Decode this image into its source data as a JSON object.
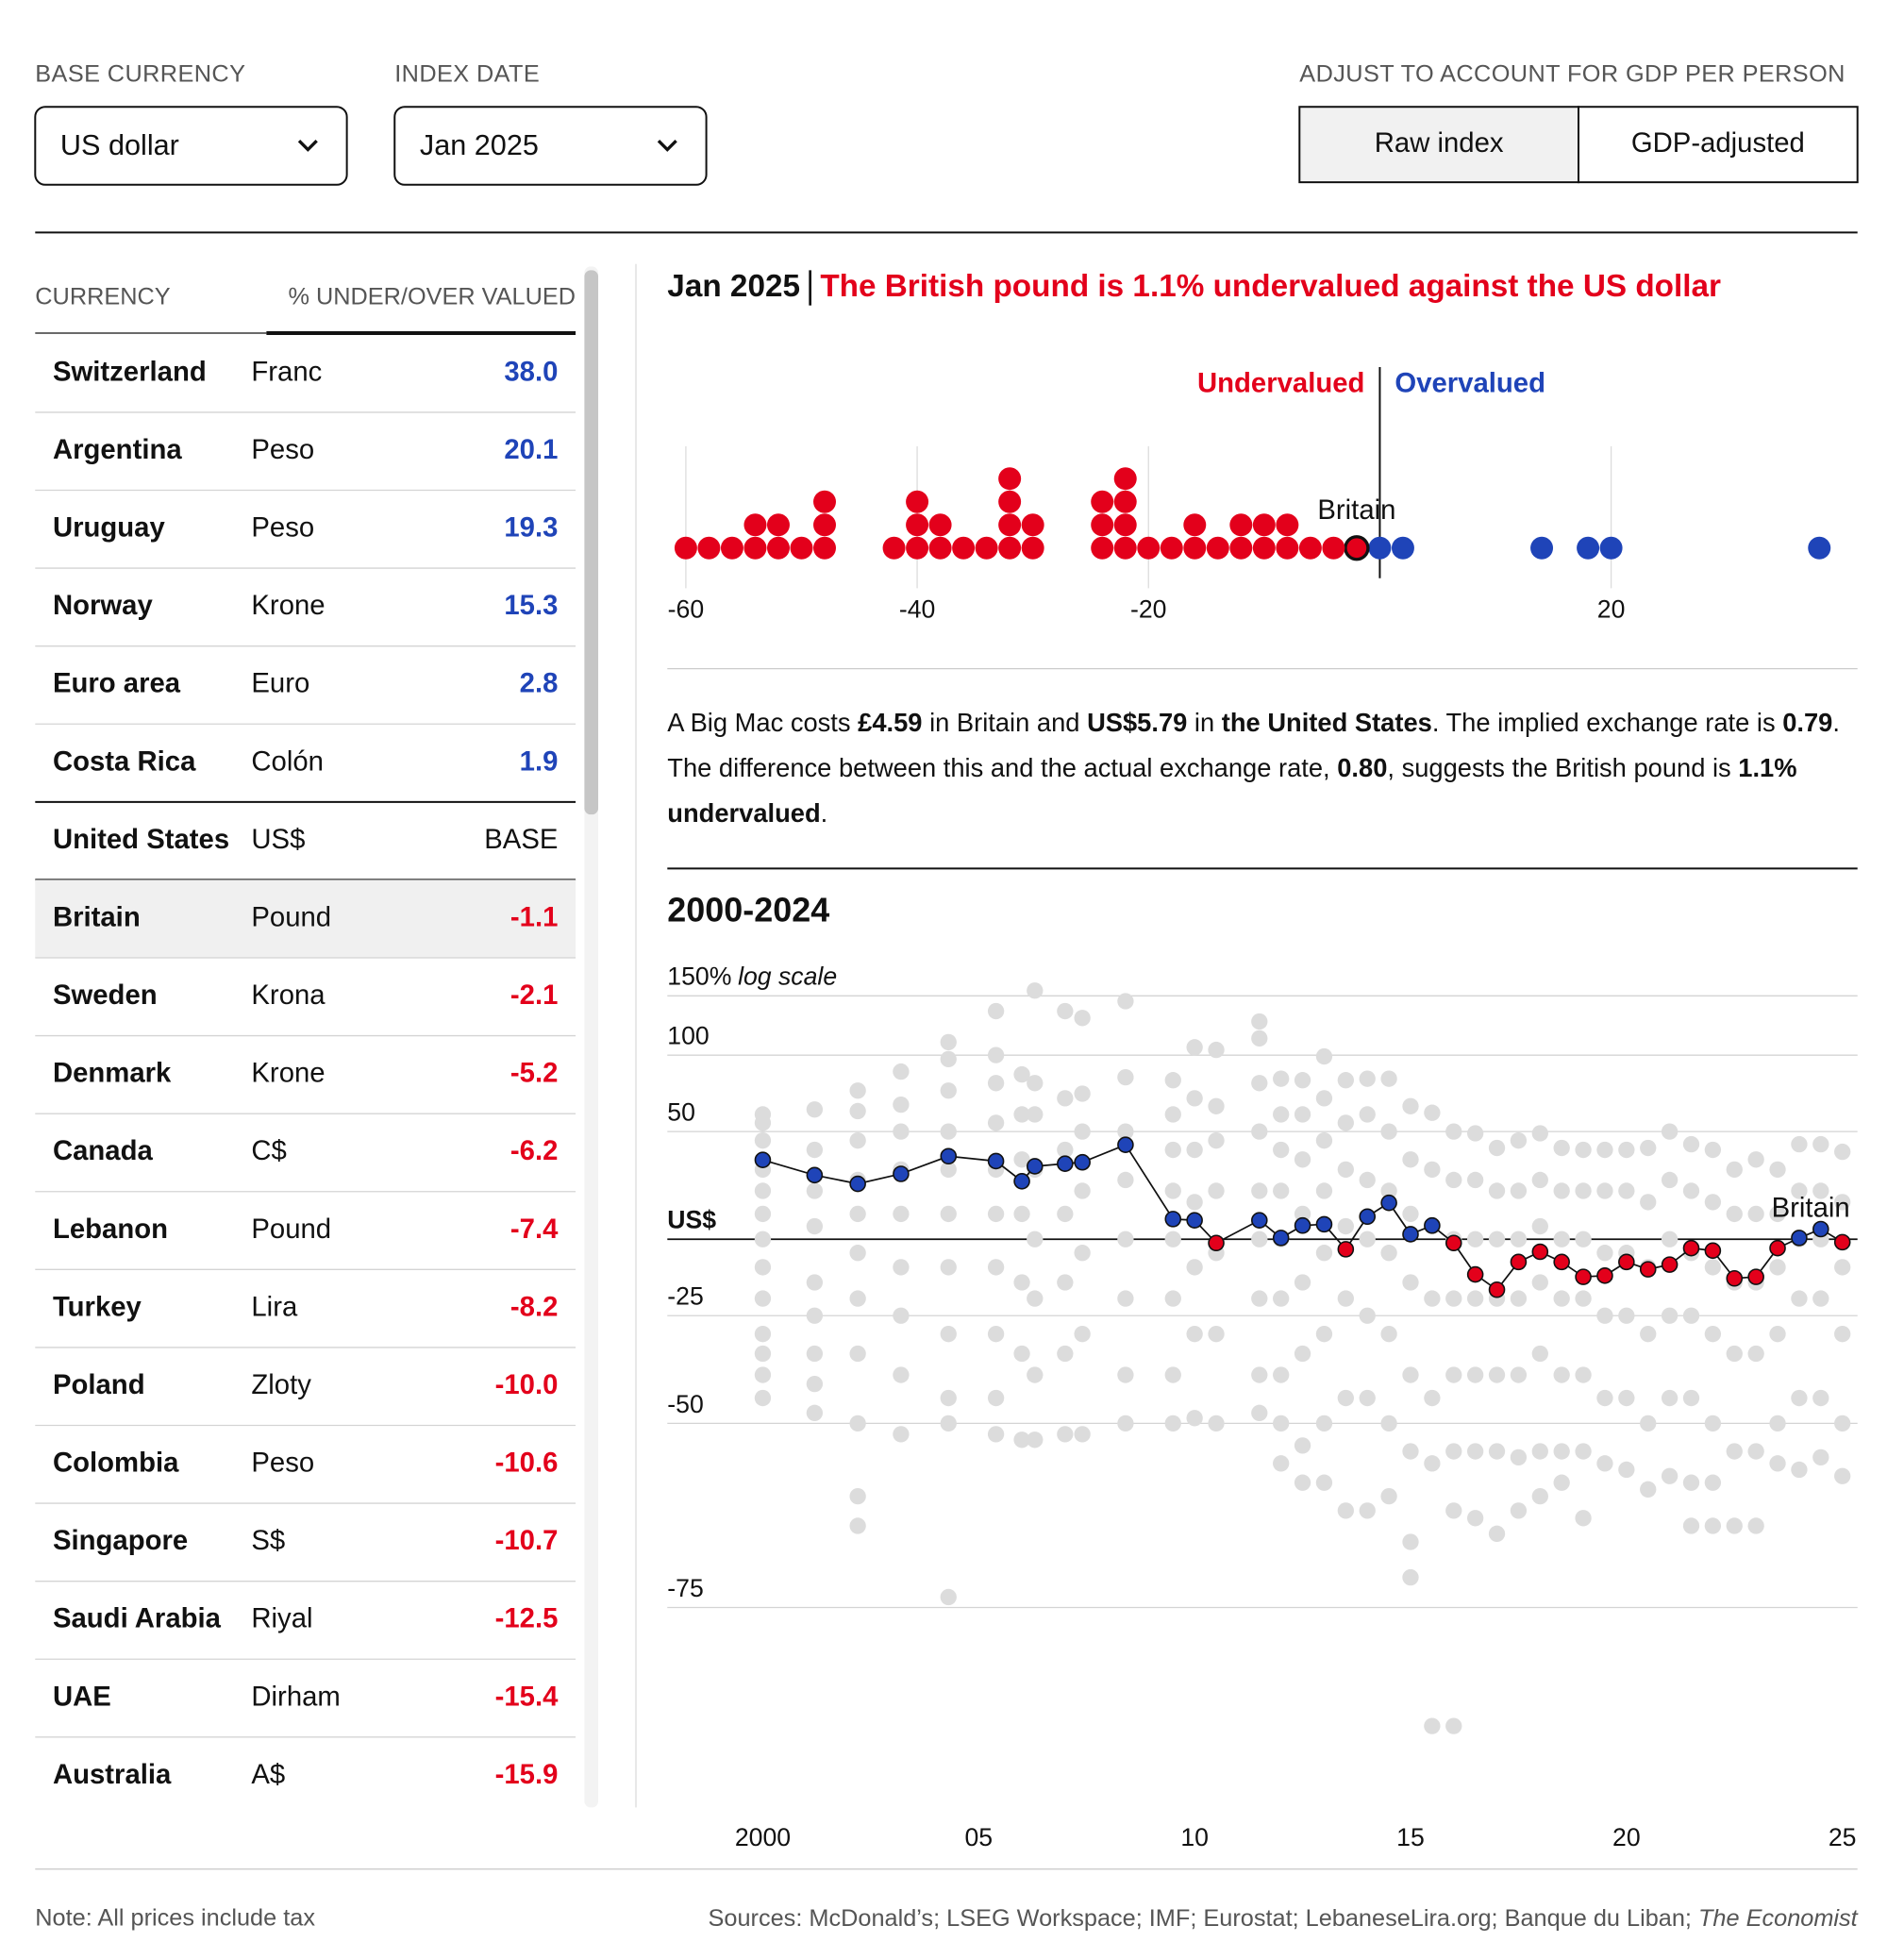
{
  "controls": {
    "base_currency": {
      "label": "BASE CURRENCY",
      "value": "US dollar"
    },
    "index_date": {
      "label": "INDEX DATE",
      "value": "Jan 2025"
    },
    "adjustment": {
      "label": "ADJUST TO ACCOUNT FOR GDP PER PERSON",
      "options": [
        "Raw index",
        "GDP-adjusted"
      ],
      "selected": 0
    }
  },
  "table": {
    "header": [
      "CURRENCY",
      "% UNDER/OVER VALUED"
    ],
    "over_color": "#1f44b8",
    "under_color": "#e3001b",
    "base_row": 6,
    "selected_row": 7,
    "rows": [
      [
        "Switzerland",
        "Franc",
        "38.0"
      ],
      [
        "Argentina",
        "Peso",
        "20.1"
      ],
      [
        "Uruguay",
        "Peso",
        "19.3"
      ],
      [
        "Norway",
        "Krone",
        "15.3"
      ],
      [
        "Euro area",
        "Euro",
        "2.8"
      ],
      [
        "Costa Rica",
        "Colón",
        "1.9"
      ],
      [
        "United States",
        "US$",
        "BASE"
      ],
      [
        "Britain",
        "Pound",
        "-1.1"
      ],
      [
        "Sweden",
        "Krona",
        "-2.1"
      ],
      [
        "Denmark",
        "Krone",
        "-5.2"
      ],
      [
        "Canada",
        "C$",
        "-6.2"
      ],
      [
        "Lebanon",
        "Pound",
        "-7.4"
      ],
      [
        "Turkey",
        "Lira",
        "-8.2"
      ],
      [
        "Poland",
        "Zloty",
        "-10.0"
      ],
      [
        "Colombia",
        "Peso",
        "-10.6"
      ],
      [
        "Singapore",
        "S$",
        "-10.7"
      ],
      [
        "Saudi Arabia",
        "Riyal",
        "-12.5"
      ],
      [
        "UAE",
        "Dirham",
        "-15.4"
      ],
      [
        "Australia",
        "A$",
        "-15.9"
      ]
    ]
  },
  "headline": "The British pound is 1.1% undervalued against the US dollar",
  "paragraph": [
    {
      "text": "A Big Mac costs ",
      "bold": false
    },
    {
      "text": "£4.59",
      "bold": true
    },
    {
      "text": " in Britain and ",
      "bold": false
    },
    {
      "text": "US$5.79",
      "bold": true
    },
    {
      "text": " in ",
      "bold": false
    },
    {
      "text": "the United States",
      "bold": true
    },
    {
      "text": ". The implied exchange rate is ",
      "bold": false
    },
    {
      "text": "0.79",
      "bold": true
    },
    {
      "text": ". The difference between this and the actual exchange rate, ",
      "bold": false
    },
    {
      "text": "0.80",
      "bold": true
    },
    {
      "text": ", suggests the British pound is ",
      "bold": false
    },
    {
      "text": "1.1% undervalued",
      "bold": true
    },
    {
      "text": ".",
      "bold": false
    }
  ],
  "chart_data": [
    {
      "type": "beeswarm",
      "below_label": "Undervalued",
      "above_label": "Overvalued",
      "below_color": "#e3001b",
      "above_color": "#1f44b8",
      "reference": 0,
      "bin_width": 2,
      "highlight_index": 6,
      "highlight_label": "Britain",
      "xlim": [
        -61.6,
        41.3
      ],
      "xticks": [
        -60,
        -40,
        -20,
        20
      ],
      "grid": true,
      "values": [
        38.0,
        20.1,
        19.3,
        15.3,
        2.8,
        1.9,
        -1.1,
        -2.1,
        -5.2,
        -6.2,
        -7.4,
        -8.2,
        -10.0,
        -10.6,
        -10.7,
        -12.5,
        -15.4,
        -15.9,
        -17.5,
        -19.5,
        -21.5,
        -21.5,
        -21.5,
        -21.5,
        -23.5,
        -23.5,
        -23.5,
        -29.5,
        -29.5,
        -31.5,
        -31.5,
        -31.5,
        -31.5,
        -33.5,
        -35.5,
        -37.5,
        -37.5,
        -39.5,
        -39.5,
        -39.5,
        -41.5,
        -47.5,
        -47.5,
        -47.5,
        -49.5,
        -51.5,
        -51.5,
        -53.5,
        -53.5,
        -55.5,
        -57.5,
        -59.5
      ]
    },
    {
      "type": "line",
      "title": "2000-2024",
      "scale_note": "log scale",
      "log_scale": true,
      "grid": true,
      "xlim": [
        1997.79,
        2025.35
      ],
      "ylim": [
        -88,
        160
      ],
      "xticks": [
        2000,
        {
          "value": 2005,
          "label": "05"
        },
        {
          "value": 2010,
          "label": "10"
        },
        {
          "value": 2015,
          "label": "15"
        },
        {
          "value": 2020,
          "label": "20"
        },
        {
          "value": 2025,
          "label": "25"
        }
      ],
      "yticks": [
        {
          "value": 150,
          "label": "150%"
        },
        100,
        50,
        {
          "value": 0,
          "label": "US$"
        },
        -25,
        -50,
        -75
      ],
      "above_color": "#1f44b8",
      "below_color": "#e3001b",
      "line_color": "#111111",
      "others_color": "#dcdcdc",
      "x": [
        2000.0,
        2001.2,
        2002.2,
        2003.2,
        2004.3,
        2005.4,
        2006.0,
        2006.3,
        2007.0,
        2007.4,
        2008.4,
        2009.5,
        2010.0,
        2010.5,
        2011.5,
        2012.0,
        2012.5,
        2013.0,
        2013.5,
        2014.0,
        2014.5,
        2015.0,
        2015.5,
        2016.0,
        2016.5,
        2017.0,
        2017.5,
        2018.0,
        2018.5,
        2019.0,
        2019.5,
        2020.0,
        2020.5,
        2021.0,
        2021.5,
        2022.0,
        2022.5,
        2023.0,
        2023.5,
        2024.0,
        2024.5,
        2025.0
      ],
      "series": [
        {
          "name": "Britain",
          "values": [
            34.8,
            27.3,
            23.2,
            27.9,
            36.7,
            34.2,
            24.4,
            31.6,
            32.9,
            33.6,
            42.7,
            7.9,
            7.4,
            -1.4,
            7.4,
            0.5,
            5.3,
            5.8,
            -3.7,
            8.9,
            14.7,
            1.9,
            5.3,
            -1.4,
            -12.4,
            -17.3,
            -8.2,
            -4.6,
            -8.2,
            -13.2,
            -12.8,
            -8.2,
            -10.7,
            -9.1,
            -3.3,
            -4.2,
            -13.7,
            -13.2,
            -3.3,
            0.5,
            3.9,
            -1.1
          ]
        }
      ],
      "others": [
        {
          "x": 2000.0,
          "values": [
            60,
            55,
            45,
            30,
            20,
            10,
            0,
            -10,
            -20,
            -30,
            -35,
            -40,
            -45
          ]
        },
        {
          "x": 2001.2,
          "values": [
            63,
            40,
            20,
            5,
            -15,
            -25,
            -35,
            -42,
            -48
          ]
        },
        {
          "x": 2002.2,
          "values": [
            75,
            62,
            45,
            25,
            10,
            -5,
            -20,
            -35,
            -50,
            -62,
            -66
          ]
        },
        {
          "x": 2003.2,
          "values": [
            88,
            66,
            50,
            30,
            10,
            -10,
            -25,
            -40,
            -52
          ]
        },
        {
          "x": 2004.3,
          "values": [
            110,
            97,
            75,
            50,
            30,
            10,
            -10,
            -30,
            -45,
            -50,
            -74
          ]
        },
        {
          "x": 2005.4,
          "values": [
            136,
            100,
            80,
            55,
            30,
            10,
            -10,
            -30,
            -45,
            -52
          ]
        },
        {
          "x": 2006.0,
          "values": [
            86,
            60,
            35,
            10,
            -15,
            -35,
            -53
          ]
        },
        {
          "x": 2006.3,
          "values": [
            155,
            80,
            60,
            30,
            0,
            -20,
            -40,
            -53
          ]
        },
        {
          "x": 2007.0,
          "values": [
            136,
            70,
            40,
            10,
            -15,
            -35,
            -52
          ]
        },
        {
          "x": 2007.4,
          "values": [
            130,
            73,
            50,
            20,
            -5,
            -30,
            -52
          ]
        },
        {
          "x": 2008.4,
          "values": [
            145,
            84,
            50,
            25,
            0,
            -20,
            -40,
            -50
          ]
        },
        {
          "x": 2009.5,
          "values": [
            82,
            60,
            40,
            20,
            0,
            -20,
            -40,
            -50
          ]
        },
        {
          "x": 2010.0,
          "values": [
            106,
            70,
            40,
            15,
            -10,
            -30,
            -49
          ]
        },
        {
          "x": 2010.5,
          "values": [
            104,
            65,
            45,
            20,
            -5,
            -30,
            -50
          ]
        },
        {
          "x": 2011.5,
          "values": [
            127,
            113,
            80,
            50,
            20,
            0,
            -20,
            -40,
            -48
          ]
        },
        {
          "x": 2012.0,
          "values": [
            83,
            60,
            40,
            20,
            0,
            -20,
            -40,
            -50,
            -57
          ]
        },
        {
          "x": 2012.5,
          "values": [
            82,
            60,
            35,
            10,
            -15,
            -35,
            -54,
            -60
          ]
        },
        {
          "x": 2013.0,
          "values": [
            99,
            70,
            45,
            20,
            -5,
            -30,
            -50,
            -60
          ]
        },
        {
          "x": 2013.5,
          "values": [
            82,
            55,
            30,
            5,
            -20,
            -45,
            -64
          ]
        },
        {
          "x": 2014.0,
          "values": [
            83,
            60,
            25,
            0,
            -25,
            -45,
            -64
          ]
        },
        {
          "x": 2014.5,
          "values": [
            83,
            50,
            20,
            -5,
            -30,
            -50,
            -62
          ]
        },
        {
          "x": 2015.0,
          "values": [
            65,
            35,
            10,
            -15,
            -40,
            -55,
            -68,
            -72
          ]
        },
        {
          "x": 2015.5,
          "values": [
            61,
            30,
            5,
            -20,
            -45,
            -57,
            -84
          ]
        },
        {
          "x": 2016.0,
          "values": [
            50,
            25,
            0,
            -20,
            -40,
            -55,
            -64,
            -84
          ]
        },
        {
          "x": 2016.5,
          "values": [
            49,
            25,
            0,
            -20,
            -40,
            -55,
            -65
          ]
        },
        {
          "x": 2017.0,
          "values": [
            41,
            20,
            0,
            -20,
            -40,
            -55,
            -67
          ]
        },
        {
          "x": 2017.5,
          "values": [
            45,
            20,
            0,
            -20,
            -40,
            -56,
            -64
          ]
        },
        {
          "x": 2018.0,
          "values": [
            49,
            25,
            5,
            -15,
            -35,
            -55,
            -62
          ]
        },
        {
          "x": 2018.5,
          "values": [
            41,
            20,
            0,
            -20,
            -40,
            -55,
            -60
          ]
        },
        {
          "x": 2019.0,
          "values": [
            40,
            20,
            0,
            -20,
            -40,
            -55,
            -65
          ]
        },
        {
          "x": 2019.5,
          "values": [
            40,
            20,
            -5,
            -25,
            -45,
            -57
          ]
        },
        {
          "x": 2020.0,
          "values": [
            40,
            20,
            -5,
            -25,
            -45,
            -58
          ]
        },
        {
          "x": 2020.5,
          "values": [
            41,
            15,
            -10,
            -30,
            -50,
            -61
          ]
        },
        {
          "x": 2021.0,
          "values": [
            50,
            25,
            0,
            -25,
            -45,
            -59
          ]
        },
        {
          "x": 2021.5,
          "values": [
            43,
            20,
            -5,
            -25,
            -45,
            -60,
            -66
          ]
        },
        {
          "x": 2022.0,
          "values": [
            40,
            15,
            -10,
            -30,
            -50,
            -60,
            -66
          ]
        },
        {
          "x": 2022.5,
          "values": [
            30,
            10,
            -15,
            -35,
            -55,
            -66
          ]
        },
        {
          "x": 2023.0,
          "values": [
            35,
            10,
            -15,
            -35,
            -55,
            -66
          ]
        },
        {
          "x": 2023.5,
          "values": [
            30,
            10,
            -10,
            -30,
            -50,
            -57
          ]
        },
        {
          "x": 2024.0,
          "values": [
            43,
            20,
            0,
            -20,
            -45,
            -58
          ]
        },
        {
          "x": 2024.5,
          "values": [
            43,
            20,
            0,
            -20,
            -45,
            -56
          ]
        },
        {
          "x": 2025.0,
          "values": [
            39,
            15,
            -10,
            -30,
            -50,
            -59
          ]
        }
      ]
    }
  ],
  "footer": {
    "note": "Note: All prices include tax",
    "sources": "Sources: McDonald’s; LSEG Workspace; IMF; Eurostat; LebaneseLira.org; Banque du Liban; ",
    "publication": "The Economist"
  }
}
